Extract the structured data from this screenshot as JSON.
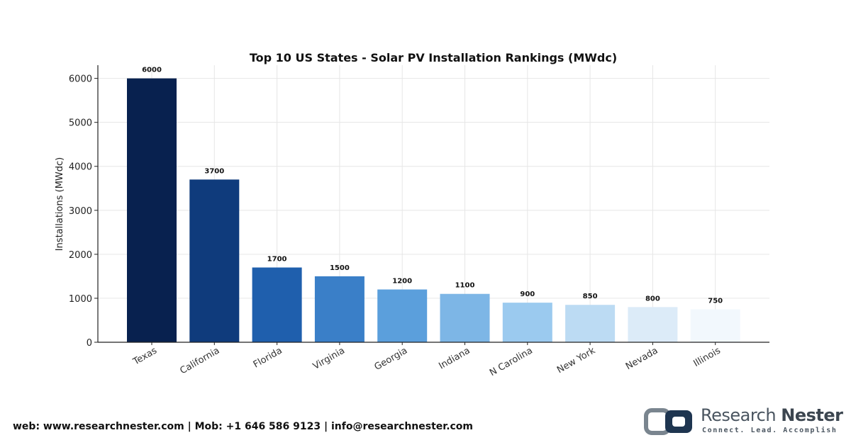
{
  "chart_data": {
    "type": "bar",
    "title": "Top 10 US States - Solar PV Installation Rankings (MWdc)",
    "xlabel": "",
    "ylabel": "Installations (MWdc)",
    "categories": [
      "Texas",
      "California",
      "Florida",
      "Virginia",
      "Georgia",
      "Indiana",
      "N Carolina",
      "New York",
      "Nevada",
      "Illinois"
    ],
    "values": [
      6000,
      3700,
      1700,
      1500,
      1200,
      1100,
      900,
      850,
      800,
      750
    ],
    "data_labels": [
      "6000",
      "3700",
      "1700",
      "1500",
      "1200",
      "1100",
      "900",
      "850",
      "800",
      "750"
    ],
    "bar_colors": [
      "#08214f",
      "#0f3b7c",
      "#1f5fad",
      "#3a7fc8",
      "#5b9fdc",
      "#7db6e6",
      "#9bcaef",
      "#bcdbf3",
      "#dcebf8",
      "#f2f8fd"
    ],
    "ylim": [
      0,
      6300
    ],
    "yticks": [
      0,
      1000,
      2000,
      3000,
      4000,
      5000,
      6000
    ],
    "grid": true,
    "legend": "none"
  },
  "footer": {
    "contact": "web: www.researchnester.com | Mob: +1 646 586 9123 | info@researchnester.com"
  },
  "brand": {
    "name_part1": "Research",
    "name_part2": "Nester",
    "tagline": "Connect. Lead. Accomplish",
    "logo_icon": "research-nester-logo-icon"
  }
}
